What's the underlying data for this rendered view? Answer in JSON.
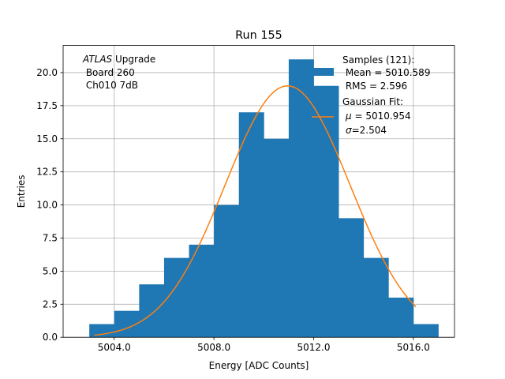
{
  "chart_data": {
    "type": "bar",
    "title": "Run 155",
    "xlabel": "Energy [ADC Counts]",
    "ylabel": "Entries",
    "xlim": [
      5001.95,
      5017.65
    ],
    "ylim": [
      0,
      22.05
    ],
    "grid": true,
    "x_ticks": [
      5004.0,
      5008.0,
      5012.0,
      5016.0
    ],
    "x_tick_labels": [
      "5004.0",
      "5008.0",
      "5012.0",
      "5016.0"
    ],
    "y_ticks": [
      0,
      2.5,
      5,
      7.5,
      10,
      12.5,
      15,
      17.5,
      20
    ],
    "y_tick_labels": [
      "0.0",
      "2.5",
      "5.0",
      "7.5",
      "10.0",
      "12.5",
      "15.0",
      "17.5",
      "20.0"
    ],
    "bin_width": 1,
    "bin_edges_start": 5003,
    "values": [
      1,
      2,
      4,
      6,
      7,
      10,
      17,
      15,
      21,
      19,
      9,
      6,
      3,
      1
    ],
    "fit_curve": {
      "type": "gaussian",
      "amplitude": 19.0,
      "mu": 5010.954,
      "sigma": 2.504,
      "x_range": [
        5003.2,
        5016.1
      ]
    },
    "colors": {
      "bars": "#1f77b4",
      "fit": "#ff7f0e",
      "grid": "#b0b0b0"
    },
    "annotation": {
      "italic": "ATLAS",
      "rest": " Upgrade",
      "line2": " Board 260",
      "line3": " Ch010 7dB"
    },
    "legend": {
      "position": "top-right",
      "samples_title": "Samples (121):",
      "samples_mean": " Mean = 5010.589",
      "samples_rms": " RMS = 2.596",
      "fit_title": "Gaussian Fit:",
      "fit_mu_symbol": "μ",
      "fit_mu_value": " = 5010.954",
      "fit_sigma_symbol": "σ",
      "fit_sigma_value": "=2.504"
    }
  }
}
